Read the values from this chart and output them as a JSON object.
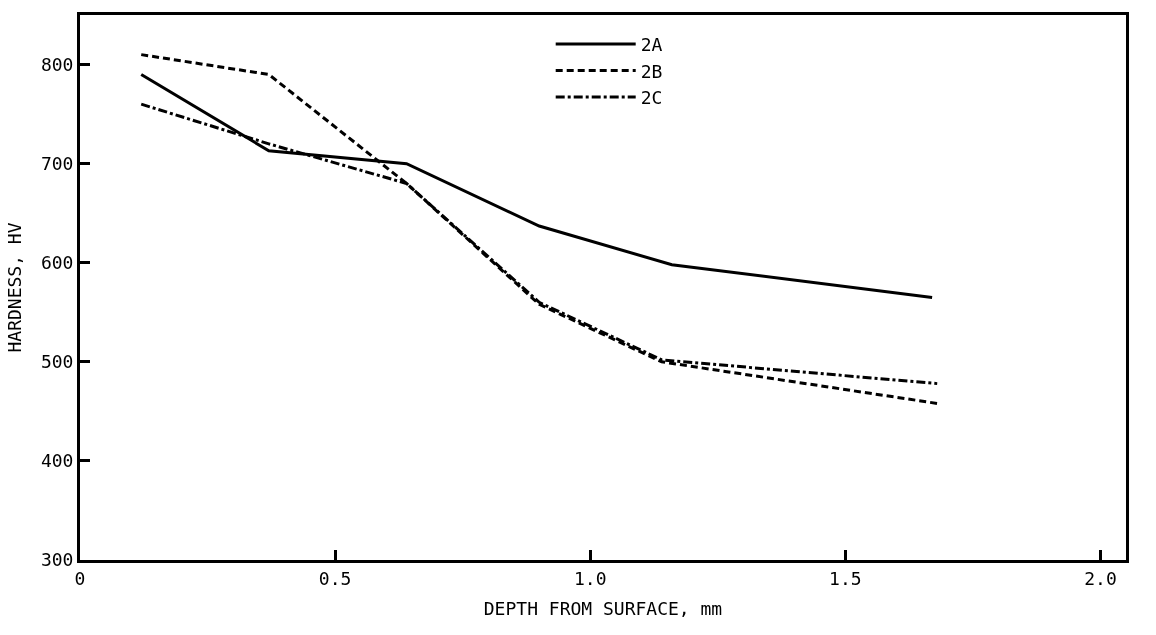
{
  "chart_data": {
    "type": "line",
    "xlabel": "DEPTH FROM SURFACE, mm",
    "ylabel": "HARDNESS, HV",
    "xlim": [
      0,
      2.05
    ],
    "ylim": [
      300,
      850
    ],
    "xticks": [
      0,
      0.5,
      {
        "value": 1.0,
        "label": "1.0"
      },
      1.5,
      {
        "value": 2.0,
        "label": "2.0"
      }
    ],
    "yticks": [
      300,
      400,
      500,
      600,
      700,
      800
    ],
    "legend": "top",
    "marker": "none",
    "series": [
      {
        "name": "2A",
        "color": "#000000",
        "line_style": "solid",
        "x": [
          0.12,
          0.37,
          0.64,
          0.9,
          1.16,
          1.67
        ],
        "values": [
          790,
          713,
          700,
          637,
          598,
          565
        ]
      },
      {
        "name": "2B",
        "color": "#000000",
        "line_style": "dashed",
        "x": [
          0.12,
          0.37,
          0.64,
          0.9,
          1.14,
          1.68
        ],
        "values": [
          810,
          790,
          680,
          558,
          500,
          458
        ]
      },
      {
        "name": "2C",
        "color": "#000000",
        "line_style": "dashdot",
        "x": [
          0.12,
          0.37,
          0.64,
          0.9,
          1.14,
          1.68
        ],
        "values": [
          760,
          720,
          680,
          560,
          502,
          478
        ]
      }
    ]
  }
}
